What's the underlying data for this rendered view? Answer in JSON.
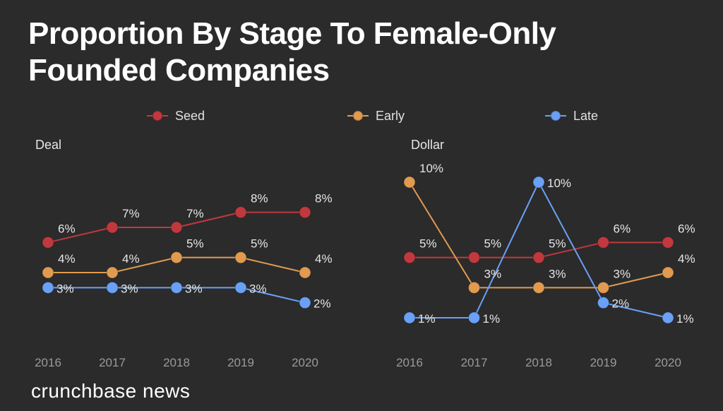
{
  "title_line1": "Proportion By Stage To Female-Only",
  "title_line2": "Founded Companies",
  "legend": [
    {
      "name": "Seed",
      "color": "#c0393f"
    },
    {
      "name": "Early",
      "color": "#e09b51"
    },
    {
      "name": "Late",
      "color": "#6aa0f5"
    }
  ],
  "brand": "crunchbase news",
  "chart_data": [
    {
      "type": "line",
      "title": "Deal",
      "categories": [
        "2016",
        "2017",
        "2018",
        "2019",
        "2020"
      ],
      "series": [
        {
          "name": "Seed",
          "values": [
            6,
            7,
            7,
            8,
            8
          ],
          "labels": [
            "6%",
            "7%",
            "7%",
            "8%",
            "8%"
          ]
        },
        {
          "name": "Early",
          "values": [
            4,
            4,
            5,
            5,
            4
          ],
          "labels": [
            "4%",
            "4%",
            "5%",
            "5%",
            "4%"
          ]
        },
        {
          "name": "Late",
          "values": [
            3,
            3,
            3,
            3,
            2
          ],
          "labels": [
            "3%",
            "3%",
            "3%",
            "3%",
            "2%"
          ]
        }
      ],
      "ylim": [
        1,
        10
      ],
      "grid": false,
      "legend_position": "top"
    },
    {
      "type": "line",
      "title": "Dollar",
      "categories": [
        "2016",
        "2017",
        "2018",
        "2019",
        "2020"
      ],
      "series": [
        {
          "name": "Seed",
          "values": [
            5,
            5,
            5,
            6,
            6
          ],
          "labels": [
            "5%",
            "5%",
            "5%",
            "6%",
            "6%"
          ]
        },
        {
          "name": "Early",
          "values": [
            10,
            3,
            3,
            3,
            4
          ],
          "labels": [
            "10%",
            "3%",
            "3%",
            "3%",
            "4%"
          ]
        },
        {
          "name": "Late",
          "values": [
            1,
            1,
            10,
            2,
            1
          ],
          "labels": [
            "1%",
            "1%",
            "10%",
            "2%",
            "1%"
          ]
        }
      ],
      "ylim": [
        1,
        10
      ],
      "grid": false,
      "legend_position": "top"
    }
  ]
}
